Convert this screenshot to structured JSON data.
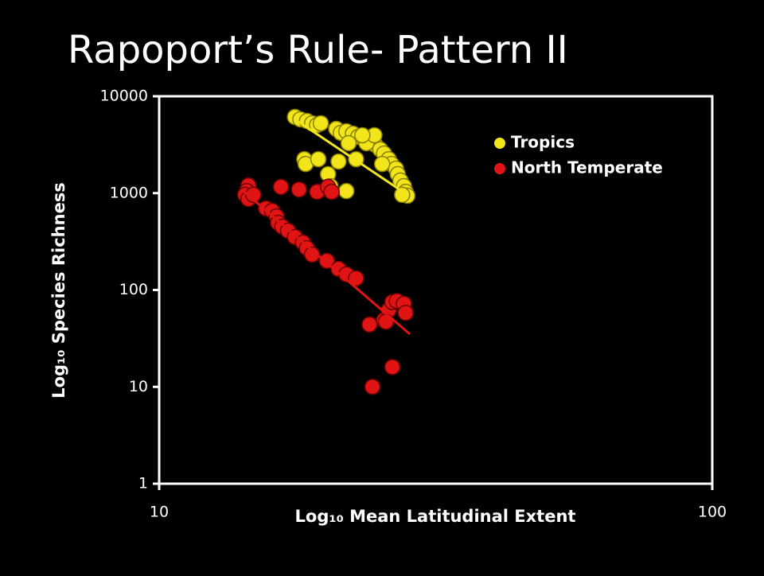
{
  "chart_data": {
    "type": "scatter",
    "title": "Rapoport’s Rule- Pattern II",
    "x_label": "Log₁₀ Mean Latitudinal Extent",
    "y_label": "Log₁₀ Species Richness",
    "xscale": "log",
    "yscale": "log",
    "xlim": [
      10,
      100
    ],
    "ylim": [
      1,
      10000
    ],
    "xticks": [
      10,
      100
    ],
    "yticks": [
      1,
      10,
      100,
      1000,
      10000
    ],
    "legend": "upper right",
    "series": [
      {
        "name": "Tropics",
        "color": "#f2e61a",
        "x": [
          17.6,
          18.0,
          18.5,
          18.9,
          19.3,
          19.6,
          20.9,
          21.3,
          21.8,
          22.4,
          22.9,
          23.5,
          24.1,
          24.6,
          25.1,
          25.5,
          26.0,
          26.3,
          26.8,
          27.0,
          27.3,
          27.7,
          27.9,
          28.1,
          27.5,
          18.3,
          18.4,
          19.4,
          20.2,
          21.1,
          22.0,
          22.7,
          20.4,
          23.7,
          24.5,
          25.3,
          23.3,
          21.8
        ],
        "values": [
          6110,
          5780,
          5560,
          5260,
          5060,
          5260,
          4600,
          4190,
          4350,
          4110,
          3810,
          3600,
          3400,
          3150,
          2820,
          2560,
          2240,
          2000,
          1790,
          1570,
          1350,
          1180,
          1030,
          940,
          960,
          2240,
          2000,
          2240,
          1570,
          2120,
          3280,
          2240,
          1180,
          3280,
          3960,
          2000,
          3960,
          1050
        ],
        "trend": {
          "x": [
            17.6,
            28.1
          ],
          "y": [
            5780,
            960
          ]
        }
      },
      {
        "name": "North Temperate",
        "color": "#e01414",
        "x": [
          14.5,
          14.4,
          14.3,
          14.5,
          14.8,
          16.6,
          17.9,
          19.3,
          20.2,
          20.5,
          15.6,
          16.0,
          16.3,
          16.4,
          16.7,
          17.1,
          17.6,
          18.2,
          18.5,
          18.9,
          20.1,
          21.1,
          21.8,
          22.7,
          24.0,
          25.5,
          26.0,
          26.4,
          26.9,
          27.7,
          27.9,
          25.7,
          24.3,
          26.4
        ],
        "values": [
          1200,
          1050,
          960,
          870,
          960,
          1160,
          1090,
          1030,
          1160,
          1030,
          695,
          657,
          575,
          494,
          450,
          409,
          352,
          308,
          270,
          232,
          200,
          165,
          145,
          132,
          44,
          49,
          62,
          75,
          77,
          72,
          58,
          47,
          10,
          16
        ],
        "trend": {
          "x": [
            14.2,
            28.4
          ],
          "y": [
            1050,
            35
          ]
        }
      }
    ]
  }
}
